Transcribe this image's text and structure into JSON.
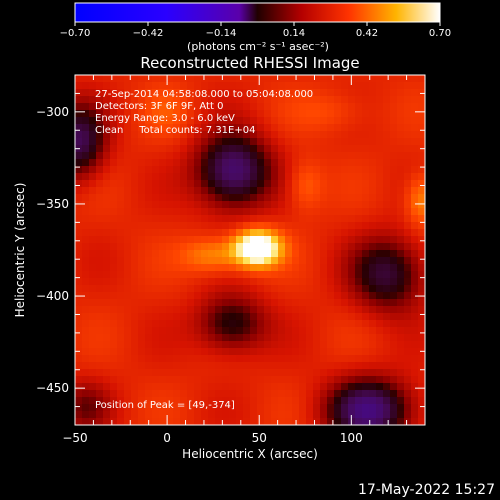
{
  "colorbar": {
    "ticks": [
      "-0.70",
      "-0.42",
      "-0.14",
      "0.14",
      "0.42",
      "0.70"
    ],
    "units_label": "(photons cm⁻² s⁻¹ asec⁻²)",
    "vmin": -0.7,
    "vmax": 0.7
  },
  "chart_data": {
    "type": "heatmap",
    "title": "Reconstructed RHESSI Image",
    "xlabel": "Heliocentric X (arcsec)",
    "ylabel": "Heliocentric Y (arcsec)",
    "xlim": [
      -50,
      140
    ],
    "ylim": [
      -470,
      -280
    ],
    "x_ticks": [
      {
        "v": -50,
        "label": "−50"
      },
      {
        "v": 0,
        "label": "0"
      },
      {
        "v": 50,
        "label": "50"
      },
      {
        "v": 100,
        "label": "100"
      }
    ],
    "y_ticks": [
      {
        "v": -300,
        "label": "−300"
      },
      {
        "v": -350,
        "label": "−350"
      },
      {
        "v": -400,
        "label": "−400"
      },
      {
        "v": -450,
        "label": "−450"
      }
    ],
    "annotations": [
      "27-Sep-2014 04:58:08.000 to 05:04:08.000",
      "Detectors: 3F 6F 9F, Att 0",
      "Energy Range: 3.0 - 6.0 keV",
      "Clean     Total counts: 7.31E+04"
    ],
    "peak_label": "Position of Peak = [49,-374]",
    "peak": [
      49,
      -374
    ],
    "components": [
      {
        "x": 49,
        "y": -374,
        "sx": 9,
        "sy": 7,
        "amp": 0.62
      },
      {
        "x": 25,
        "y": -378,
        "sx": 12,
        "sy": 7,
        "amp": 0.22
      },
      {
        "x": 36,
        "y": -332,
        "sx": 14,
        "sy": 14,
        "amp": -0.55
      },
      {
        "x": -48,
        "y": -316,
        "sx": 10,
        "sy": 14,
        "amp": -0.45
      },
      {
        "x": 120,
        "y": -388,
        "sx": 14,
        "sy": 14,
        "amp": -0.4
      },
      {
        "x": 35,
        "y": -415,
        "sx": 13,
        "sy": 11,
        "amp": -0.35
      },
      {
        "x": 110,
        "y": -462,
        "sx": 16,
        "sy": 12,
        "amp": -0.55
      },
      {
        "x": -45,
        "y": -460,
        "sx": 10,
        "sy": 10,
        "amp": -0.2
      },
      {
        "x": 138,
        "y": -348,
        "sx": 6,
        "sy": 10,
        "amp": 0.22
      },
      {
        "x": 75,
        "y": -340,
        "sx": 7,
        "sy": 10,
        "amp": 0.15
      },
      {
        "x": 90,
        "y": -300,
        "sx": 14,
        "sy": 8,
        "amp": 0.1
      },
      {
        "x": 0,
        "y": -300,
        "sx": 10,
        "sy": 10,
        "amp": 0.08
      }
    ],
    "grid": false
  },
  "footer": {
    "date": "17-May-2022 15:27"
  }
}
